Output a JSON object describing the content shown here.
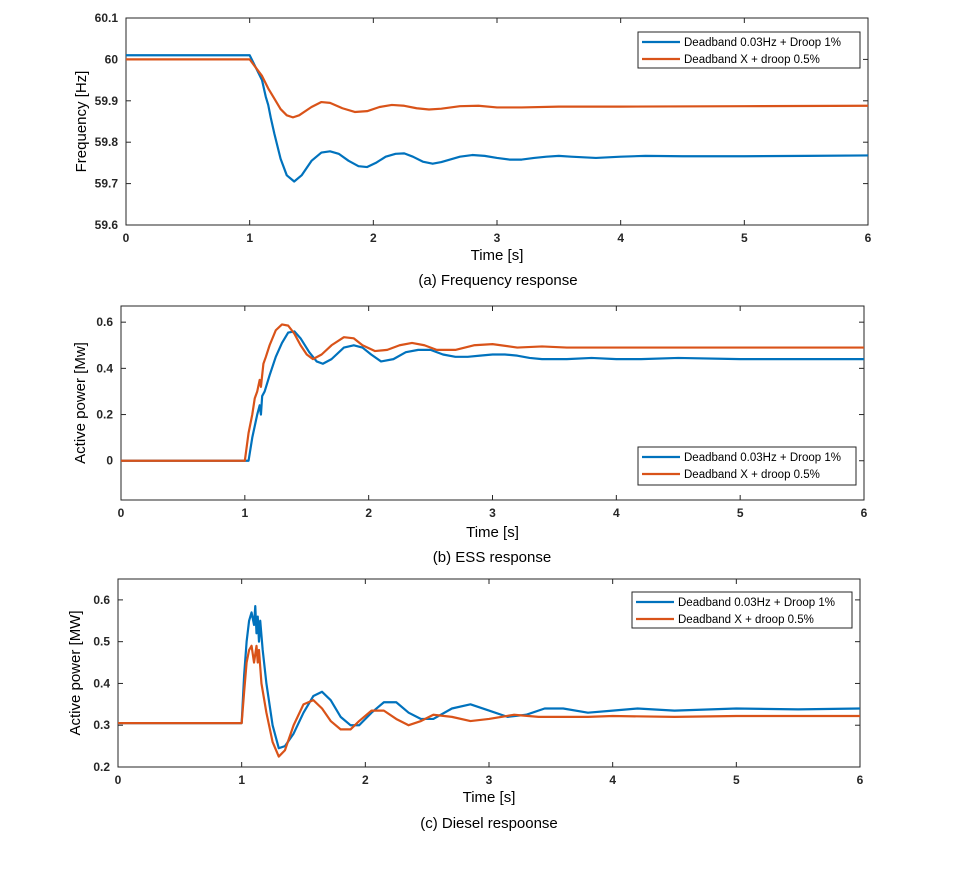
{
  "colors": {
    "blue": "#0072BD",
    "orange": "#D95319",
    "axis": "#262626",
    "grid": "#ffffff"
  },
  "chart_data": [
    {
      "type": "line",
      "caption": "(a) Frequency response",
      "xlabel": "Time [s]",
      "ylabel": "Frequency [Hz]",
      "xlim": [
        0,
        6
      ],
      "ylim": [
        59.6,
        60.1
      ],
      "xticks": [
        "0",
        "1",
        "2",
        "3",
        "4",
        "5",
        "6"
      ],
      "yticks": [
        "59.6",
        "59.7",
        "59.8",
        "59.9",
        "60",
        "60.1"
      ],
      "legend_position": "top-right",
      "series": [
        {
          "name": "Deadband 0.03Hz + Droop 1%",
          "color": "#0072BD",
          "x": [
            0,
            1.0,
            1.05,
            1.1,
            1.13,
            1.15,
            1.17,
            1.2,
            1.25,
            1.3,
            1.36,
            1.42,
            1.5,
            1.58,
            1.65,
            1.72,
            1.8,
            1.88,
            1.95,
            2.02,
            2.1,
            2.18,
            2.25,
            2.32,
            2.4,
            2.48,
            2.55,
            2.62,
            2.7,
            2.8,
            2.9,
            3.0,
            3.1,
            3.2,
            3.3,
            3.4,
            3.5,
            3.6,
            3.8,
            4.0,
            4.2,
            4.5,
            5.0,
            5.5,
            6.0
          ],
          "y": [
            60.01,
            60.01,
            59.98,
            59.95,
            59.91,
            59.89,
            59.86,
            59.82,
            59.76,
            59.72,
            59.705,
            59.72,
            59.755,
            59.775,
            59.778,
            59.772,
            59.755,
            59.742,
            59.74,
            59.75,
            59.765,
            59.772,
            59.773,
            59.765,
            59.753,
            59.748,
            59.752,
            59.758,
            59.765,
            59.769,
            59.767,
            59.762,
            59.758,
            59.758,
            59.762,
            59.765,
            59.767,
            59.765,
            59.762,
            59.765,
            59.767,
            59.766,
            59.766,
            59.767,
            59.768
          ]
        },
        {
          "name": "Deadband X + droop 0.5%",
          "color": "#D95319",
          "x": [
            0,
            1.0,
            1.05,
            1.1,
            1.15,
            1.2,
            1.25,
            1.3,
            1.35,
            1.4,
            1.5,
            1.58,
            1.65,
            1.75,
            1.85,
            1.95,
            2.05,
            2.15,
            2.25,
            2.35,
            2.45,
            2.55,
            2.7,
            2.85,
            3.0,
            3.2,
            3.5,
            4.0,
            5.0,
            6.0
          ],
          "y": [
            60.0,
            60.0,
            59.98,
            59.96,
            59.93,
            59.905,
            59.88,
            59.865,
            59.86,
            59.865,
            59.885,
            59.897,
            59.895,
            59.882,
            59.873,
            59.875,
            59.885,
            59.89,
            59.888,
            59.882,
            59.879,
            59.881,
            59.887,
            59.888,
            59.884,
            59.884,
            59.886,
            59.886,
            59.887,
            59.888
          ]
        }
      ]
    },
    {
      "type": "line",
      "caption": "(b) ESS response",
      "xlabel": "Time [s]",
      "ylabel": "Active power [Mw]",
      "xlim": [
        0,
        6
      ],
      "ylim": [
        -0.17,
        0.67
      ],
      "xticks": [
        "0",
        "1",
        "2",
        "3",
        "4",
        "5",
        "6"
      ],
      "yticks": [
        "0",
        "0.2",
        "0.4",
        "0.6"
      ],
      "ytick_values": [
        0,
        0.2,
        0.4,
        0.6
      ],
      "legend_position": "bottom-right",
      "series": [
        {
          "name": "Deadband 0.03Hz + Droop 1%",
          "color": "#0072BD",
          "x": [
            0,
            1.0,
            1.03,
            1.06,
            1.08,
            1.1,
            1.12,
            1.13,
            1.14,
            1.16,
            1.2,
            1.25,
            1.3,
            1.35,
            1.4,
            1.45,
            1.52,
            1.58,
            1.63,
            1.7,
            1.8,
            1.88,
            1.95,
            2.02,
            2.1,
            2.2,
            2.3,
            2.4,
            2.5,
            2.6,
            2.7,
            2.8,
            2.9,
            3.0,
            3.1,
            3.2,
            3.3,
            3.4,
            3.6,
            3.8,
            4.0,
            4.2,
            4.5,
            5.0,
            5.5,
            6.0
          ],
          "y": [
            0,
            0,
            0,
            0.1,
            0.15,
            0.2,
            0.24,
            0.2,
            0.28,
            0.3,
            0.37,
            0.45,
            0.51,
            0.555,
            0.56,
            0.53,
            0.47,
            0.43,
            0.42,
            0.44,
            0.49,
            0.5,
            0.49,
            0.46,
            0.43,
            0.44,
            0.47,
            0.48,
            0.48,
            0.46,
            0.45,
            0.45,
            0.455,
            0.46,
            0.46,
            0.455,
            0.445,
            0.44,
            0.44,
            0.445,
            0.44,
            0.44,
            0.445,
            0.44,
            0.44,
            0.44
          ]
        },
        {
          "name": "Deadband X + droop 0.5%",
          "color": "#D95319",
          "x": [
            0,
            1.0,
            1.03,
            1.06,
            1.08,
            1.1,
            1.12,
            1.13,
            1.15,
            1.17,
            1.2,
            1.25,
            1.3,
            1.35,
            1.4,
            1.45,
            1.5,
            1.55,
            1.62,
            1.7,
            1.8,
            1.88,
            1.95,
            2.05,
            2.15,
            2.25,
            2.35,
            2.45,
            2.55,
            2.7,
            2.85,
            3.0,
            3.2,
            3.4,
            3.6,
            3.8,
            4.0,
            4.5,
            5.0,
            5.5,
            6.0
          ],
          "y": [
            0,
            0,
            0.12,
            0.2,
            0.27,
            0.3,
            0.35,
            0.32,
            0.42,
            0.45,
            0.5,
            0.565,
            0.59,
            0.585,
            0.55,
            0.5,
            0.46,
            0.44,
            0.46,
            0.5,
            0.535,
            0.53,
            0.5,
            0.475,
            0.48,
            0.5,
            0.51,
            0.5,
            0.48,
            0.48,
            0.5,
            0.505,
            0.49,
            0.495,
            0.49,
            0.49,
            0.49,
            0.49,
            0.49,
            0.49,
            0.49
          ]
        }
      ]
    },
    {
      "type": "line",
      "caption": "(c) Diesel respoonse",
      "xlabel": "Time [s]",
      "ylabel": "Active power [MW]",
      "xlim": [
        0,
        6
      ],
      "ylim": [
        0.2,
        0.65
      ],
      "xticks": [
        "0",
        "1",
        "2",
        "3",
        "4",
        "5",
        "6"
      ],
      "yticks": [
        "0.2",
        "0.3",
        "0.4",
        "0.5",
        "0.6"
      ],
      "legend_position": "top-right",
      "series": [
        {
          "name": "Deadband 0.03Hz + Droop 1%",
          "color": "#0072BD",
          "x": [
            0,
            1.0,
            1.02,
            1.04,
            1.06,
            1.08,
            1.1,
            1.11,
            1.12,
            1.13,
            1.14,
            1.15,
            1.17,
            1.2,
            1.25,
            1.3,
            1.35,
            1.42,
            1.5,
            1.58,
            1.65,
            1.72,
            1.8,
            1.88,
            1.95,
            2.05,
            2.15,
            2.25,
            2.35,
            2.45,
            2.55,
            2.7,
            2.85,
            3.0,
            3.15,
            3.3,
            3.45,
            3.6,
            3.8,
            4.0,
            4.2,
            4.5,
            5.0,
            5.5,
            6.0
          ],
          "y": [
            0.305,
            0.305,
            0.42,
            0.5,
            0.55,
            0.57,
            0.54,
            0.585,
            0.52,
            0.56,
            0.5,
            0.55,
            0.48,
            0.4,
            0.3,
            0.245,
            0.25,
            0.28,
            0.33,
            0.37,
            0.38,
            0.36,
            0.32,
            0.3,
            0.3,
            0.33,
            0.355,
            0.355,
            0.33,
            0.315,
            0.315,
            0.34,
            0.35,
            0.335,
            0.32,
            0.325,
            0.34,
            0.34,
            0.33,
            0.335,
            0.34,
            0.335,
            0.34,
            0.338,
            0.34
          ]
        },
        {
          "name": "Deadband X + droop 0.5%",
          "color": "#D95319",
          "x": [
            0,
            1.0,
            1.02,
            1.04,
            1.06,
            1.08,
            1.1,
            1.12,
            1.13,
            1.14,
            1.16,
            1.2,
            1.25,
            1.3,
            1.35,
            1.42,
            1.5,
            1.58,
            1.65,
            1.72,
            1.8,
            1.88,
            1.95,
            2.05,
            2.15,
            2.25,
            2.35,
            2.45,
            2.55,
            2.7,
            2.85,
            3.0,
            3.2,
            3.4,
            3.6,
            3.8,
            4.0,
            4.5,
            5.0,
            5.5,
            6.0
          ],
          "y": [
            0.305,
            0.305,
            0.38,
            0.45,
            0.48,
            0.49,
            0.45,
            0.49,
            0.45,
            0.48,
            0.4,
            0.33,
            0.26,
            0.225,
            0.24,
            0.3,
            0.35,
            0.36,
            0.34,
            0.31,
            0.29,
            0.29,
            0.31,
            0.335,
            0.335,
            0.315,
            0.3,
            0.31,
            0.325,
            0.32,
            0.31,
            0.315,
            0.325,
            0.32,
            0.32,
            0.32,
            0.322,
            0.32,
            0.322,
            0.322,
            0.322
          ]
        }
      ]
    }
  ]
}
